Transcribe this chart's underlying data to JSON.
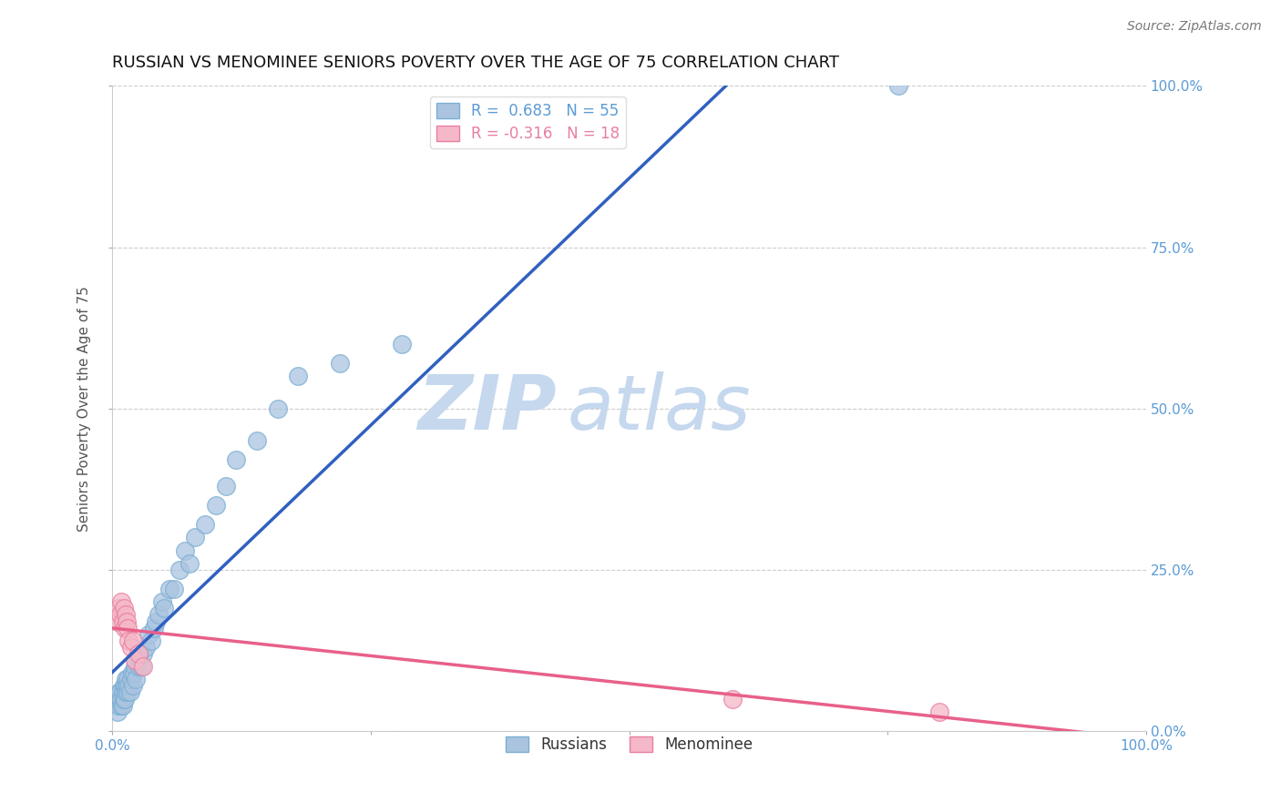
{
  "title": "RUSSIAN VS MENOMINEE SENIORS POVERTY OVER THE AGE OF 75 CORRELATION CHART",
  "source": "Source: ZipAtlas.com",
  "ylabel": "Seniors Poverty Over the Age of 75",
  "watermark_zip": "ZIP",
  "watermark_atlas": "atlas",
  "xlim": [
    0,
    1
  ],
  "ylim": [
    0,
    1
  ],
  "ytick_labels": [
    "0.0%",
    "25.0%",
    "50.0%",
    "75.0%",
    "100.0%"
  ],
  "ytick_positions": [
    0,
    0.25,
    0.5,
    0.75,
    1.0
  ],
  "xtick_positions": [
    0,
    0.25,
    0.5,
    0.75,
    1.0
  ],
  "xtick_labels": [
    "0.0%",
    "",
    "",
    "",
    "100.0%"
  ],
  "background_color": "#ffffff",
  "plot_bg_color": "#ffffff",
  "grid_color": "#cccccc",
  "russian_color": "#aac4e0",
  "russian_edge_color": "#7bafd4",
  "menominee_color": "#f5b8c8",
  "menominee_edge_color": "#e87fa0",
  "russian_line_color": "#3060c0",
  "menominee_line_color": "#e8608a",
  "R_russian": 0.683,
  "N_russian": 55,
  "R_menominee": -0.316,
  "N_menominee": 18,
  "legend_label_russian": "Russians",
  "legend_label_menominee": "Menominee",
  "russian_x": [
    0.005,
    0.006,
    0.007,
    0.007,
    0.008,
    0.008,
    0.009,
    0.009,
    0.01,
    0.01,
    0.011,
    0.011,
    0.012,
    0.012,
    0.013,
    0.013,
    0.014,
    0.015,
    0.015,
    0.016,
    0.017,
    0.018,
    0.019,
    0.02,
    0.021,
    0.022,
    0.023,
    0.025,
    0.026,
    0.028,
    0.03,
    0.032,
    0.035,
    0.038,
    0.04,
    0.042,
    0.045,
    0.048,
    0.05,
    0.055,
    0.06,
    0.065,
    0.07,
    0.075,
    0.08,
    0.09,
    0.1,
    0.11,
    0.12,
    0.14,
    0.16,
    0.18,
    0.22,
    0.28,
    0.76
  ],
  "russian_y": [
    0.03,
    0.04,
    0.05,
    0.06,
    0.05,
    0.06,
    0.04,
    0.05,
    0.04,
    0.06,
    0.05,
    0.07,
    0.05,
    0.07,
    0.06,
    0.08,
    0.07,
    0.06,
    0.08,
    0.07,
    0.06,
    0.08,
    0.09,
    0.07,
    0.09,
    0.1,
    0.08,
    0.1,
    0.12,
    0.1,
    0.12,
    0.13,
    0.15,
    0.14,
    0.16,
    0.17,
    0.18,
    0.2,
    0.19,
    0.22,
    0.22,
    0.25,
    0.28,
    0.26,
    0.3,
    0.32,
    0.35,
    0.38,
    0.42,
    0.45,
    0.5,
    0.55,
    0.57,
    0.6,
    1.0
  ],
  "menominee_x": [
    0.005,
    0.006,
    0.008,
    0.009,
    0.01,
    0.011,
    0.012,
    0.013,
    0.014,
    0.015,
    0.016,
    0.018,
    0.02,
    0.022,
    0.025,
    0.03,
    0.6,
    0.8
  ],
  "menominee_y": [
    0.17,
    0.19,
    0.18,
    0.2,
    0.17,
    0.19,
    0.16,
    0.18,
    0.17,
    0.16,
    0.14,
    0.13,
    0.14,
    0.11,
    0.12,
    0.1,
    0.05,
    0.03
  ],
  "title_fontsize": 13,
  "axis_label_fontsize": 11,
  "tick_fontsize": 11,
  "legend_fontsize": 12,
  "watermark_fontsize_zip": 60,
  "watermark_fontsize_atlas": 60,
  "source_fontsize": 10,
  "marker_size": 200,
  "line_width": 2.5,
  "tick_color": "#5b9bd5",
  "legend_text_color_russian": "#5b9bd5",
  "legend_text_color_menominee": "#e87fa0"
}
